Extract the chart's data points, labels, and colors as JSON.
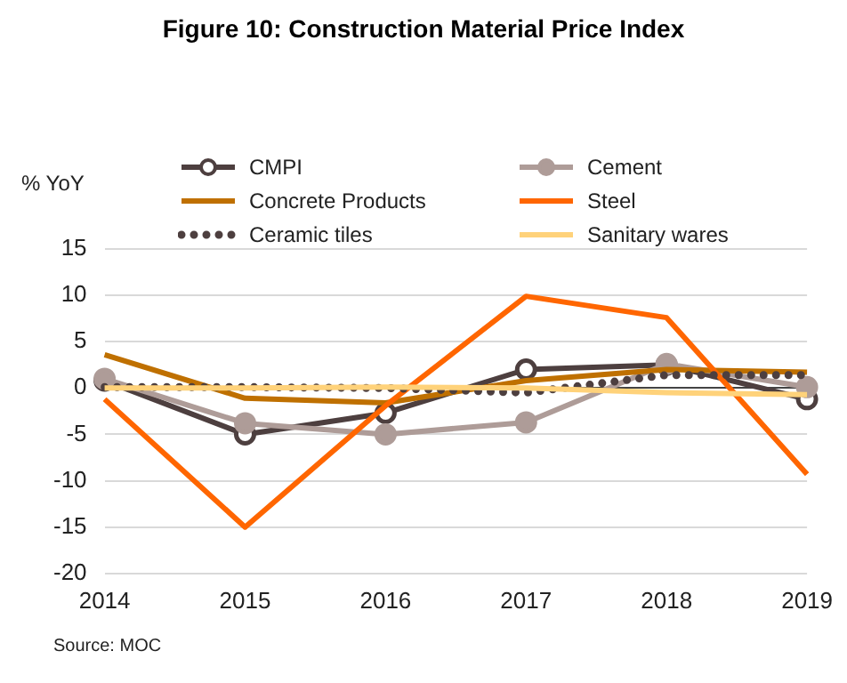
{
  "chart_data": {
    "type": "line",
    "title": "Figure 10: Construction Material Price Index",
    "ylabel": "% YoY",
    "categories": [
      "2014",
      "2015",
      "2016",
      "2017",
      "2018",
      "2019"
    ],
    "series": [
      {
        "name": "CMPI",
        "color": "#4d3f3f",
        "values": [
          0.8,
          -5,
          -2.7,
          2,
          2.5,
          -1.2
        ],
        "marker": "circle",
        "line_style": "solid"
      },
      {
        "name": "Cement",
        "color": "#ae9c98",
        "values": [
          1,
          -3.8,
          -5,
          -3.7,
          2.6,
          0.1
        ],
        "marker": "circle",
        "line_style": "solid"
      },
      {
        "name": "Concrete Products",
        "color": "#bf7000",
        "values": [
          3.6,
          -1.1,
          -1.6,
          0.8,
          2,
          1.7
        ],
        "marker": "none",
        "line_style": "solid"
      },
      {
        "name": "Steel",
        "color": "#ff6600",
        "values": [
          -1.2,
          -15,
          -1.9,
          9.9,
          7.6,
          -9.3
        ],
        "marker": "none",
        "line_style": "solid"
      },
      {
        "name": "Ceramic tiles",
        "color": "#4d3f3f",
        "values": [
          0.1,
          0.1,
          0,
          -0.5,
          1.4,
          1.4
        ],
        "marker": "none",
        "line_style": "dotted"
      },
      {
        "name": "Sanitary wares",
        "color": "#ffd27a",
        "values": [
          0,
          0,
          0.1,
          0,
          -0.5,
          -0.7
        ],
        "marker": "none",
        "line_style": "solid"
      }
    ],
    "ylim": [
      -20,
      15
    ],
    "yticks": [
      -20,
      -15,
      -10,
      -5,
      0,
      5,
      10,
      15
    ],
    "grid": "y",
    "legend": "top",
    "annotations": [
      "Source: MOC"
    ]
  }
}
